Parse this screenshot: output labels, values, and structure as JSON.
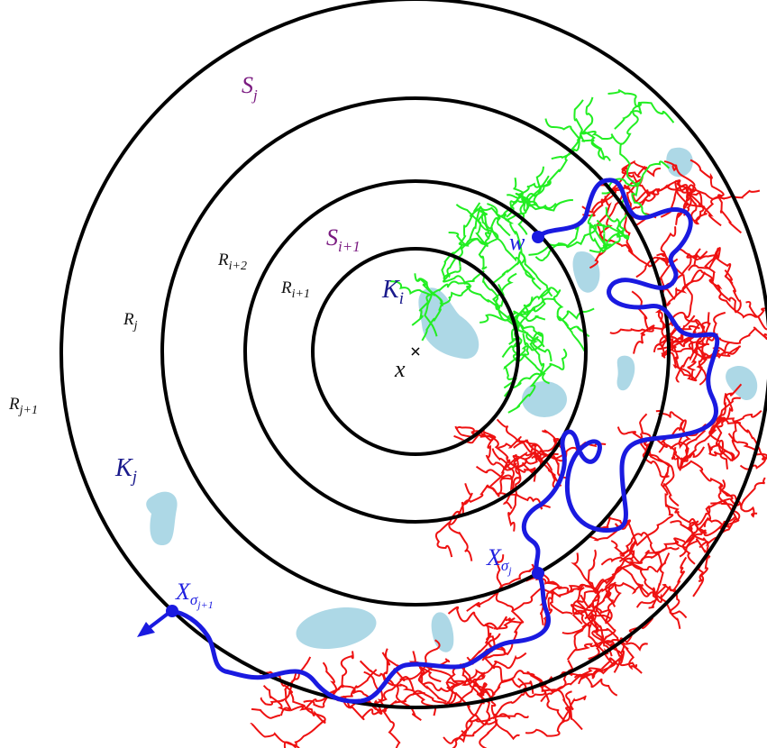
{
  "labels": {
    "s_j": {
      "main": "S",
      "sub": "j"
    },
    "s_i1": {
      "main": "S",
      "sub": "i+1"
    },
    "r_i2": {
      "main": "R",
      "sub": "i+2"
    },
    "r_i1": {
      "main": "R",
      "sub": "i+1"
    },
    "r_j": {
      "main": "R",
      "sub": "j"
    },
    "r_j1": {
      "main": "R",
      "sub": "j+1"
    },
    "k_i": {
      "main": "K",
      "sub": "i"
    },
    "k_j": {
      "main": "K",
      "sub": "j"
    },
    "w": {
      "main": "w"
    },
    "x": {
      "main": "x"
    },
    "x_sj": {
      "main": "X",
      "sub": "σ",
      "subsub": "j"
    },
    "x_sj1": {
      "main": "X",
      "sub": "σ",
      "subsub": "j+1"
    }
  }
}
